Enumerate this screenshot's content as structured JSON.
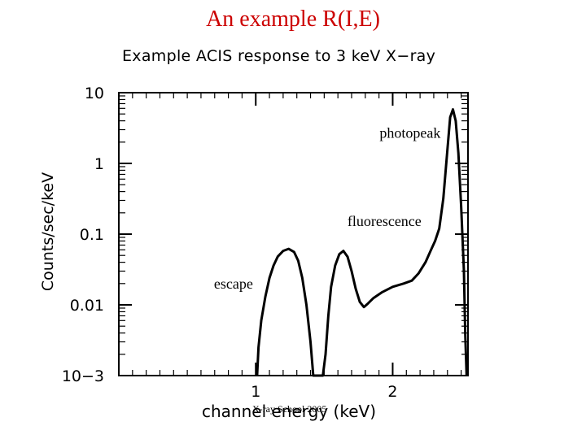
{
  "slide": {
    "title": "An example R(I,E)",
    "footer": "X-ray School 2005"
  },
  "chart_data": {
    "type": "line",
    "title": "Example ACIS response to 3 keV X−ray",
    "xlabel": "channel energy (keV)",
    "ylabel": "Counts/sec/keV",
    "xlim": [
      0.0,
      2.55
    ],
    "ylim": [
      0.001,
      10
    ],
    "yscale": "log",
    "x_ticks": [
      {
        "value": 1,
        "label": "1"
      },
      {
        "value": 2,
        "label": "2"
      }
    ],
    "y_ticks": [
      {
        "value": 10,
        "label": "10"
      },
      {
        "value": 1,
        "label": "1"
      },
      {
        "value": 0.1,
        "label": "0.1"
      },
      {
        "value": 0.01,
        "label": "0.01"
      },
      {
        "value": 0.001,
        "label": "10−3"
      }
    ],
    "grid": false,
    "series": [
      {
        "points": [
          [
            1.01,
            0.0008
          ],
          [
            1.02,
            0.0025
          ],
          [
            1.04,
            0.006
          ],
          [
            1.07,
            0.013
          ],
          [
            1.1,
            0.024
          ],
          [
            1.13,
            0.036
          ],
          [
            1.16,
            0.048
          ],
          [
            1.2,
            0.058
          ],
          [
            1.24,
            0.062
          ],
          [
            1.28,
            0.056
          ],
          [
            1.31,
            0.042
          ],
          [
            1.34,
            0.024
          ],
          [
            1.37,
            0.01
          ],
          [
            1.4,
            0.003
          ],
          [
            1.42,
            0.0008
          ],
          [
            1.49,
            0.0008
          ],
          [
            1.51,
            0.002
          ],
          [
            1.53,
            0.007
          ],
          [
            1.55,
            0.018
          ],
          [
            1.58,
            0.036
          ],
          [
            1.61,
            0.052
          ],
          [
            1.64,
            0.058
          ],
          [
            1.67,
            0.048
          ],
          [
            1.7,
            0.03
          ],
          [
            1.73,
            0.017
          ],
          [
            1.76,
            0.011
          ],
          [
            1.79,
            0.0093
          ],
          [
            1.82,
            0.0105
          ],
          [
            1.86,
            0.0125
          ],
          [
            1.92,
            0.015
          ],
          [
            2.0,
            0.018
          ],
          [
            2.08,
            0.02
          ],
          [
            2.14,
            0.022
          ],
          [
            2.19,
            0.028
          ],
          [
            2.24,
            0.04
          ],
          [
            2.28,
            0.06
          ],
          [
            2.31,
            0.08
          ],
          [
            2.34,
            0.12
          ],
          [
            2.37,
            0.32
          ],
          [
            2.4,
            1.6
          ],
          [
            2.42,
            4.5
          ],
          [
            2.44,
            5.8
          ],
          [
            2.46,
            4.0
          ],
          [
            2.48,
            1.4
          ],
          [
            2.5,
            0.25
          ],
          [
            2.52,
            0.03
          ],
          [
            2.53,
            0.004
          ],
          [
            2.54,
            0.0008
          ]
        ]
      }
    ],
    "annotations": [
      {
        "text": "photopeak",
        "x": 2.35,
        "y": 2.3
      },
      {
        "text": "fluorescence",
        "x": 2.21,
        "y": 0.13
      },
      {
        "text": "escape",
        "x": 0.98,
        "y": 0.017
      }
    ]
  }
}
